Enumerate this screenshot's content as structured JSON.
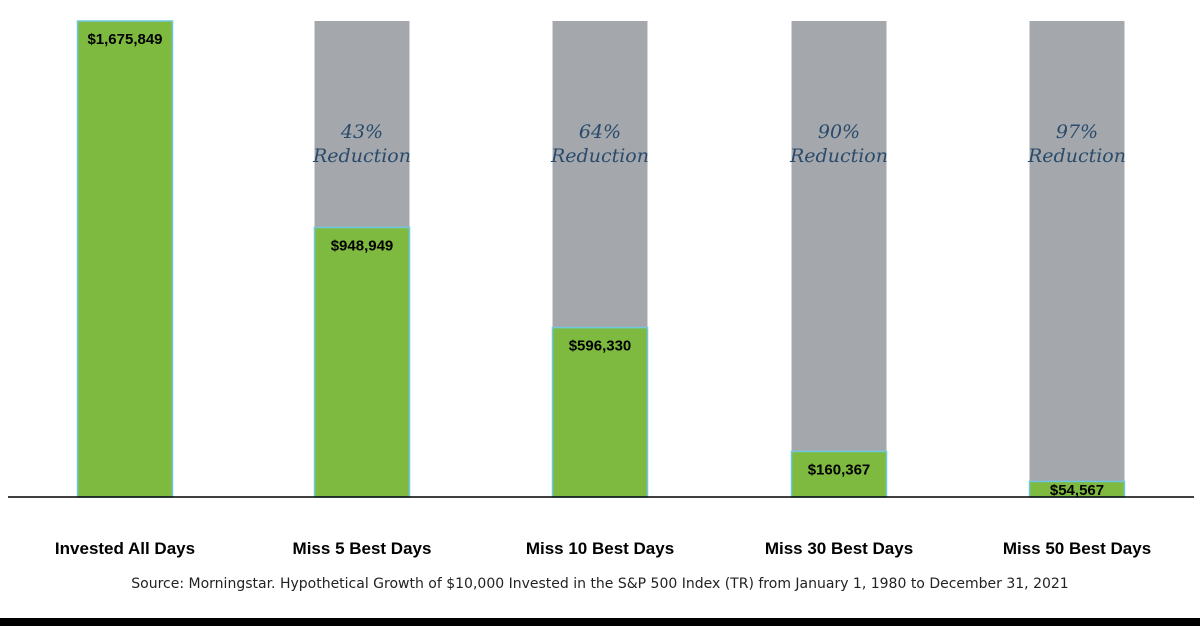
{
  "chart_data": {
    "type": "bar",
    "categories": [
      "Invested All Days",
      "Miss 5 Best Days",
      "Miss 10 Best Days",
      "Miss 30 Best Days",
      "Miss 50 Best Days"
    ],
    "values": [
      1675849,
      948949,
      596330,
      160367,
      54567
    ],
    "value_labels": [
      "$1,675,849",
      "$948,949",
      "$596,330",
      "$160,367",
      "$54,567"
    ],
    "reductions": [
      null,
      {
        "percent": "43%",
        "word": "Reduction"
      },
      {
        "percent": "64%",
        "word": "Reduction"
      },
      {
        "percent": "90%",
        "word": "Reduction"
      },
      {
        "percent": "97%",
        "word": "Reduction"
      }
    ],
    "ylim": [
      0,
      1675849
    ],
    "grid": false,
    "colors": {
      "bar": "#7dba3f",
      "bar_outline": "#6fc8e0",
      "remainder": "#a4a8ac",
      "reduction_text": "#2a4a6b"
    }
  },
  "source_note": "Source: Morningstar. Hypothetical Growth of $10,000 Invested in the S&P 500 Index (TR) from January 1, 1980 to December 31, 2021"
}
